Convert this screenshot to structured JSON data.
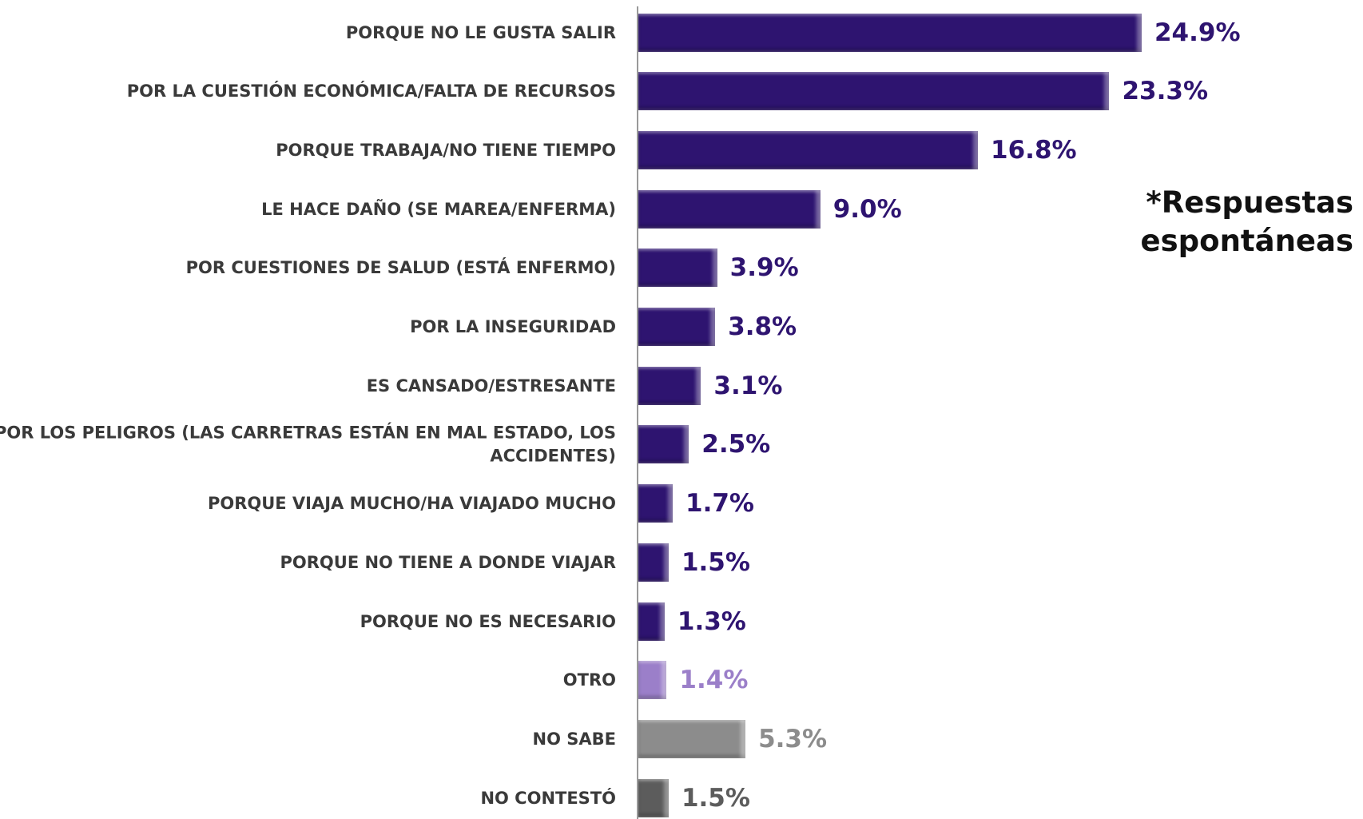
{
  "chart_data": {
    "type": "barh",
    "categories": [
      "PORQUE NO LE GUSTA SALIR",
      "POR LA CUESTIÓN ECONÓMICA/FALTA DE RECURSOS",
      "PORQUE TRABAJA/NO TIENE TIEMPO",
      "LE HACE DAÑO (SE MAREA/ENFERMA)",
      "POR CUESTIONES DE SALUD (ESTÁ ENFERMO)",
      "POR LA INSEGURIDAD",
      "ES CANSADO/ESTRESANTE",
      "POR LOS PELIGROS (LAS CARRETRAS ESTÁN EN MAL ESTADO, LOS ACCIDENTES)",
      "PORQUE VIAJA MUCHO/HA VIAJADO MUCHO",
      "PORQUE NO TIENE A DONDE VIAJAR",
      "PORQUE NO ES NECESARIO",
      "OTRO",
      "NO SABE",
      "NO CONTESTÓ"
    ],
    "values": [
      24.9,
      23.3,
      16.8,
      9.0,
      3.9,
      3.8,
      3.1,
      2.5,
      1.7,
      1.5,
      1.3,
      1.4,
      5.3,
      1.5
    ],
    "value_labels": [
      "24.9%",
      "23.3%",
      "16.8%",
      "9.0%",
      "3.9%",
      "3.8%",
      "3.1%",
      "2.5%",
      "1.7%",
      "1.5%",
      "1.3%",
      "1.4%",
      "5.3%",
      "1.5%"
    ],
    "colors": [
      "#2e1470",
      "#2e1470",
      "#2e1470",
      "#2e1470",
      "#2e1470",
      "#2e1470",
      "#2e1470",
      "#2e1470",
      "#2e1470",
      "#2e1470",
      "#2e1470",
      "#9b7fc9",
      "#8c8c8c",
      "#5c5c5c"
    ],
    "annotation": [
      "*Respuestas",
      "espontáneas"
    ]
  }
}
